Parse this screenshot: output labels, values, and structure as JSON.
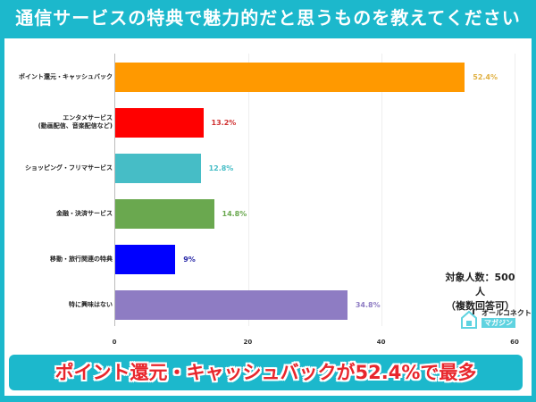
{
  "header": {
    "title": "通信サービスの特典で魅力的だと思うものを教えてください"
  },
  "note": {
    "line1": "対象人数：500人",
    "line2": "（複数回答可）"
  },
  "logo": {
    "top": "オールコネクト",
    "bottom": "マガジン"
  },
  "callout": {
    "text": "ポイント還元・キャッシュバックが52.4%で最多"
  },
  "chart_data": {
    "type": "bar",
    "orientation": "horizontal",
    "title": "通信サービスの特典で魅力的だと思うものを教えてください",
    "xlabel": "",
    "ylabel": "",
    "xlim": [
      0,
      60
    ],
    "xticks": [
      "0",
      "20",
      "40",
      "60"
    ],
    "grid": true,
    "categories": [
      "ポイント還元・キャッシュバック",
      "エンタメサービス\n(動画配信、音楽配信など)",
      "ショッピング・フリマサービス",
      "金融・決済サービス",
      "移動・旅行関連の特典",
      "特に興味はない"
    ],
    "values": [
      52.4,
      13.2,
      12.8,
      14.8,
      9,
      34.8
    ],
    "labels": [
      "52.4%",
      "13.2%",
      "12.8%",
      "14.8%",
      "9%",
      "34.8%"
    ],
    "colors": [
      "#ff9900",
      "#ff0000",
      "#46bdc6",
      "#6aa84f",
      "#0000ff",
      "#8e7cc3"
    ],
    "label_colors": [
      "#e0b040",
      "#d03030",
      "#46bdc6",
      "#6aa84f",
      "#2a2aa8",
      "#8e7cc3"
    ]
  }
}
